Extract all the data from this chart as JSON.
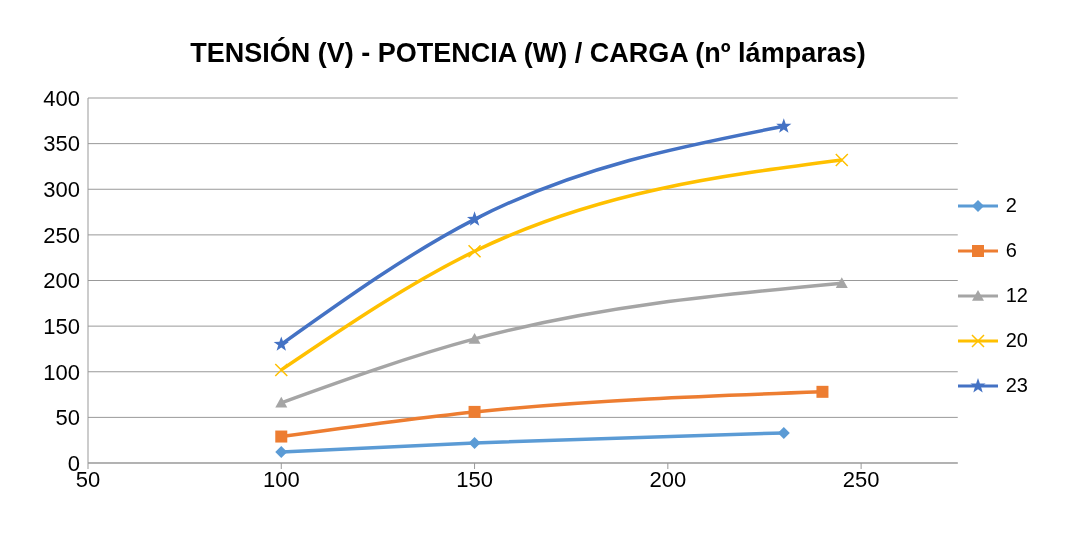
{
  "chart_data": {
    "type": "line",
    "title": "TENSIÓN (V) - POTENCIA (W) / CARGA (nº lámparas)",
    "xlim": [
      50,
      275
    ],
    "xticks": [
      50,
      100,
      150,
      200,
      250
    ],
    "ylim": [
      0,
      400
    ],
    "yticks": [
      0,
      50,
      100,
      150,
      200,
      250,
      300,
      350,
      400
    ],
    "grid": "y",
    "legend": "right",
    "series": [
      {
        "name": "2",
        "color": "#5b9bd5",
        "marker": "diamond",
        "x": [
          100,
          150,
          230
        ],
        "values": [
          12,
          22,
          33
        ]
      },
      {
        "name": "6",
        "color": "#ed7d31",
        "marker": "square",
        "x": [
          100,
          150,
          240
        ],
        "values": [
          29,
          56,
          78
        ]
      },
      {
        "name": "12",
        "color": "#a5a5a5",
        "marker": "triangle",
        "x": [
          100,
          150,
          245
        ],
        "values": [
          66,
          136,
          197
        ]
      },
      {
        "name": "20",
        "color": "#ffc000",
        "marker": "cross",
        "x": [
          100,
          150,
          245
        ],
        "values": [
          102,
          232,
          332
        ]
      },
      {
        "name": "23",
        "color": "#4472c4",
        "marker": "star",
        "x": [
          100,
          150,
          230
        ],
        "values": [
          130,
          267,
          369
        ]
      }
    ]
  }
}
